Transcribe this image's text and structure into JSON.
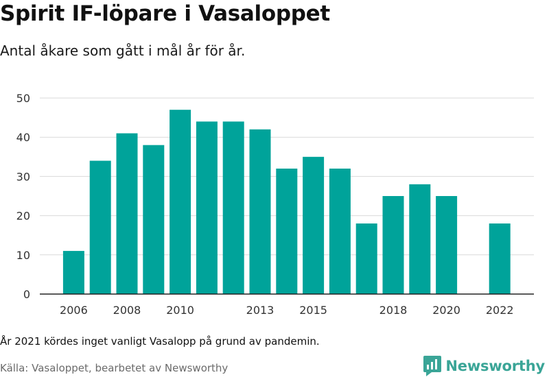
{
  "title": "Spirit IF-löpare i Vasaloppet",
  "subtitle": "Antal åkare som gått i mål år för år.",
  "note": "År 2021 kördes inget vanligt Vasalopp på grund av pandemin.",
  "source": "Källa: Vasaloppet, bearbetet av Newsworthy",
  "brand": {
    "name": "Newsworthy",
    "icon": "newsworthy-logo-icon",
    "color": "#3aa597"
  },
  "colors": {
    "bar": "#00a39a",
    "grid": "#d9d9d9",
    "axis": "#222222",
    "tick_text": "#333333"
  },
  "chart_data": {
    "type": "bar",
    "x": [
      2006,
      2007,
      2008,
      2009,
      2010,
      2011,
      2012,
      2013,
      2014,
      2015,
      2016,
      2017,
      2018,
      2019,
      2020,
      2021,
      2022
    ],
    "values": [
      11,
      34,
      41,
      38,
      47,
      44,
      44,
      42,
      32,
      35,
      32,
      18,
      25,
      28,
      25,
      null,
      18
    ],
    "x_tick_labels": [
      "2006",
      "2008",
      "2010",
      "2013",
      "2015",
      "2018",
      "2020",
      "2022"
    ],
    "y_ticks": [
      0,
      10,
      20,
      30,
      40,
      50
    ],
    "ylim": [
      0,
      50
    ],
    "xlabel": "",
    "ylabel": "",
    "grid": true,
    "legend": "none"
  }
}
